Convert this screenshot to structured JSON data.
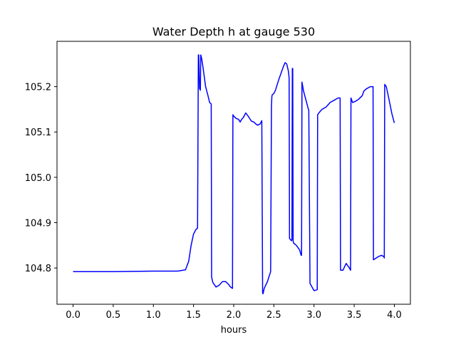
{
  "chart_data": {
    "type": "line",
    "title": "Water Depth h at gauge 530",
    "xlabel": "hours",
    "ylabel": "",
    "xlim": [
      -0.2,
      4.2
    ],
    "ylim": [
      104.72,
      105.3
    ],
    "xticks": [
      0.0,
      0.5,
      1.0,
      1.5,
      2.0,
      2.5,
      3.0,
      3.5,
      4.0
    ],
    "xtick_labels": [
      "0.0",
      "0.5",
      "1.0",
      "1.5",
      "2.0",
      "2.5",
      "3.0",
      "3.5",
      "4.0"
    ],
    "yticks": [
      104.8,
      104.9,
      105.0,
      105.1,
      105.2
    ],
    "ytick_labels": [
      "104.8",
      "104.9",
      "105.0",
      "105.1",
      "105.2"
    ],
    "grid": false,
    "series": [
      {
        "color": "#0000ff",
        "x": [
          0.0,
          0.5,
          1.0,
          1.3,
          1.4,
          1.44,
          1.47,
          1.5,
          1.53,
          1.55,
          1.56,
          1.565,
          1.575,
          1.58,
          1.585,
          1.59,
          1.6,
          1.62,
          1.65,
          1.68,
          1.7,
          1.72,
          1.725,
          1.74,
          1.78,
          1.82,
          1.86,
          1.9,
          1.94,
          1.96,
          1.985,
          1.99,
          2.0,
          2.03,
          2.06,
          2.08,
          2.1,
          2.12,
          2.15,
          2.18,
          2.22,
          2.25,
          2.28,
          2.3,
          2.33,
          2.35,
          2.36,
          2.365,
          2.38,
          2.42,
          2.46,
          2.47,
          2.475,
          2.48,
          2.5,
          2.52,
          2.56,
          2.6,
          2.62,
          2.64,
          2.66,
          2.68,
          2.69,
          2.695,
          2.72,
          2.725,
          2.73,
          2.735,
          2.74,
          2.745,
          2.78,
          2.82,
          2.84,
          2.845,
          2.85,
          2.87,
          2.9,
          2.93,
          2.935,
          2.95,
          3.0,
          3.04,
          3.045,
          3.06,
          3.1,
          3.15,
          3.2,
          3.25,
          3.3,
          3.325,
          3.33,
          3.36,
          3.4,
          3.44,
          3.455,
          3.46,
          3.48,
          3.52,
          3.56,
          3.6,
          3.62,
          3.65,
          3.7,
          3.735,
          3.74,
          3.8,
          3.84,
          3.87,
          3.875,
          3.88,
          3.9,
          3.93,
          3.97,
          4.0
        ],
        "y": [
          104.792,
          104.792,
          104.793,
          104.793,
          104.796,
          104.815,
          104.85,
          104.875,
          104.885,
          104.888,
          105.27,
          105.27,
          105.195,
          105.195,
          105.192,
          105.27,
          105.263,
          105.24,
          105.2,
          105.18,
          105.165,
          105.162,
          104.78,
          104.768,
          104.758,
          104.762,
          104.77,
          104.77,
          104.763,
          104.758,
          104.755,
          105.138,
          105.135,
          105.13,
          105.128,
          105.122,
          105.128,
          105.132,
          105.142,
          105.135,
          105.124,
          105.122,
          105.117,
          105.115,
          105.118,
          105.125,
          104.745,
          104.743,
          104.755,
          104.77,
          104.792,
          105.155,
          105.178,
          105.182,
          105.185,
          105.192,
          105.215,
          105.235,
          105.245,
          105.253,
          105.25,
          105.235,
          105.22,
          104.865,
          104.86,
          104.862,
          105.24,
          105.24,
          104.86,
          104.855,
          104.85,
          104.84,
          104.828,
          104.828,
          105.21,
          105.19,
          105.17,
          105.15,
          105.148,
          104.766,
          104.75,
          104.752,
          105.138,
          105.142,
          105.15,
          105.155,
          105.165,
          105.17,
          105.175,
          105.175,
          104.795,
          104.795,
          104.81,
          104.8,
          104.795,
          105.175,
          105.165,
          105.168,
          105.173,
          105.18,
          105.19,
          105.195,
          105.2,
          105.2,
          104.818,
          104.825,
          104.828,
          104.825,
          104.822,
          105.205,
          105.2,
          105.175,
          105.14,
          105.12
        ]
      }
    ]
  }
}
